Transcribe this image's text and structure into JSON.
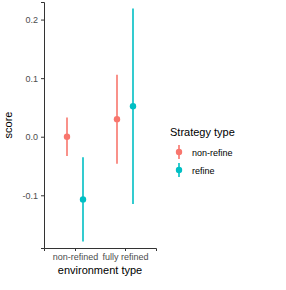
{
  "chart_data": {
    "type": "errorbar",
    "x_label": "environment type",
    "y_label": "score",
    "legend_title": "Strategy type",
    "legend": "right",
    "grid": false,
    "marker": "circle",
    "categories": [
      "non-refined",
      "fully refined"
    ],
    "series": [
      {
        "name": "non-refine",
        "color": "#F8766D",
        "values": [
          0.0,
          0.03
        ],
        "errors": [
          0.033,
          0.076
        ]
      },
      {
        "name": "refine",
        "color": "#00BFC4",
        "values": [
          -0.107,
          0.052
        ],
        "errors": [
          0.072,
          0.167
        ]
      }
    ],
    "ylim": [
      -0.19,
      0.23
    ],
    "yticks": [
      -0.1,
      {
        "value": 0,
        "label": "0.0"
      },
      0.1,
      0.2
    ]
  }
}
